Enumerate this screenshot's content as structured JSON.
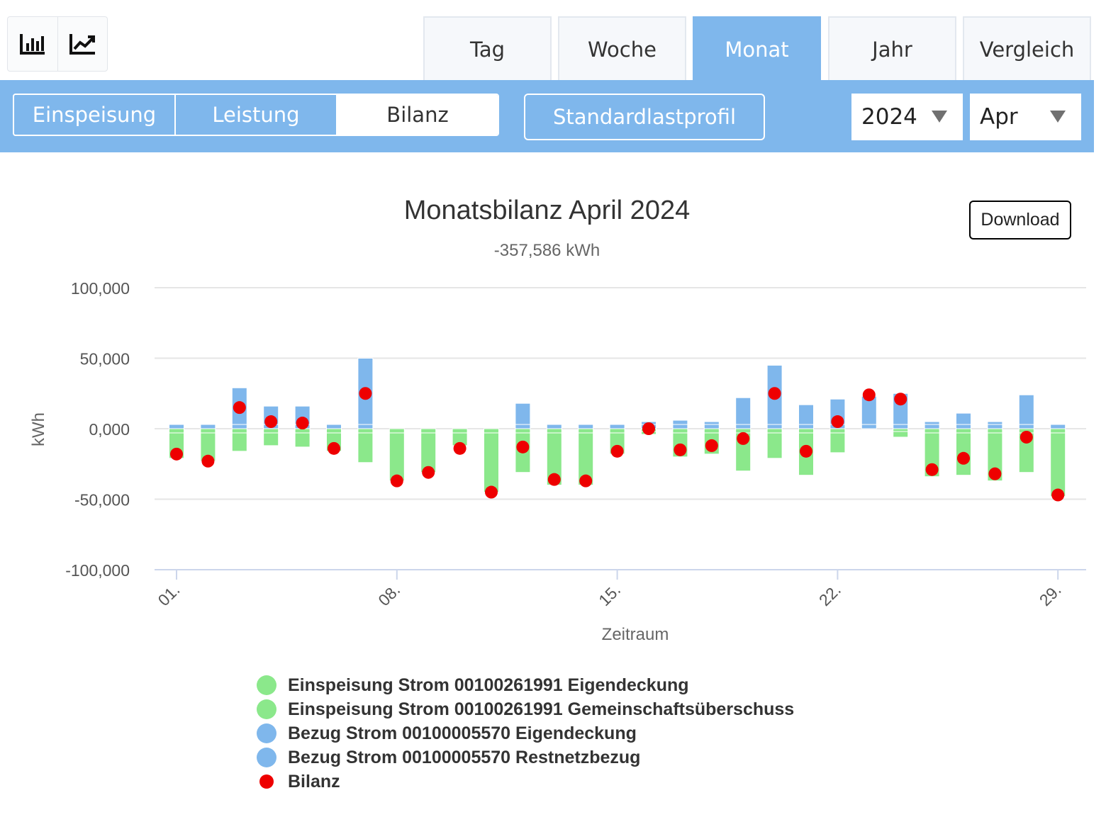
{
  "view_toggle": {
    "bar_icon": "bar-chart-icon",
    "line_icon": "line-chart-icon"
  },
  "period_tabs": [
    {
      "label": "Tag",
      "active": false
    },
    {
      "label": "Woche",
      "active": false
    },
    {
      "label": "Monat",
      "active": true
    },
    {
      "label": "Jahr",
      "active": false
    },
    {
      "label": "Vergleich",
      "active": false
    }
  ],
  "mode_tabs": [
    {
      "label": "Einspeisung",
      "active": false
    },
    {
      "label": "Leistung",
      "active": false
    },
    {
      "label": "Bilanz",
      "active": true
    }
  ],
  "standard_profile_label": "Standardlastprofil",
  "year_select": {
    "value": "2024"
  },
  "month_select": {
    "value": "Apr"
  },
  "download_label": "Download",
  "colors": {
    "accent": "#7fb7ec",
    "feed_in": "#8be88b",
    "consumption": "#7fb7ec",
    "balance": "#ee0000"
  },
  "chart_data": {
    "type": "bar",
    "title": "Monatsbilanz April 2024",
    "subtitle": "-357,586 kWh",
    "xlabel": "Zeitraum",
    "ylabel": "kWh",
    "ylim": [
      -100,
      100
    ],
    "yticks": [
      "100,000",
      "50,000",
      "0,000",
      "-50,000",
      "-100,000"
    ],
    "ytick_values": [
      100,
      50,
      0,
      -50,
      -100
    ],
    "x": [
      1,
      2,
      3,
      4,
      5,
      6,
      7,
      8,
      9,
      10,
      11,
      12,
      13,
      14,
      15,
      16,
      17,
      18,
      19,
      20,
      21,
      22,
      23,
      24,
      25,
      26,
      27,
      28,
      29
    ],
    "x_tick_labels": [
      {
        "day": 1,
        "label": "01."
      },
      {
        "day": 8,
        "label": "08."
      },
      {
        "day": 15,
        "label": "15."
      },
      {
        "day": 22,
        "label": "22."
      },
      {
        "day": 29,
        "label": "29."
      }
    ],
    "series": [
      {
        "name": "Einspeisung Strom 00100261991 Eigendeckung",
        "values": [
          -3,
          -3,
          -3,
          -3,
          -3,
          -3,
          -3,
          -3,
          -3,
          -3,
          -3,
          -3,
          -3,
          -3,
          -3,
          -2,
          -3,
          -3,
          -3,
          -3,
          -3,
          -3,
          0,
          -2,
          -3,
          -3,
          -3,
          -3,
          -3
        ]
      },
      {
        "name": "Einspeisung Strom 00100261991 Gemeinschaftsüberschuss",
        "values": [
          -18,
          -20,
          -13,
          -9,
          -10,
          -13,
          -21,
          -34,
          -28,
          -9,
          -42,
          -28,
          -37,
          -37,
          -15,
          -2,
          -17,
          -15,
          -27,
          -18,
          -30,
          -14,
          0,
          -4,
          -31,
          -30,
          -34,
          -28,
          -45
        ]
      },
      {
        "name": "Bezug Strom 00100005570 Eigendeckung",
        "values": [
          3,
          3,
          3,
          3,
          3,
          3,
          3,
          0,
          0,
          0,
          0,
          3,
          3,
          3,
          3,
          3,
          3,
          3,
          3,
          3,
          3,
          3,
          3,
          3,
          3,
          3,
          3,
          3,
          3
        ]
      },
      {
        "name": "Bezug Strom 00100005570 Restnetzbezug",
        "values": [
          0,
          0,
          26,
          13,
          13,
          0,
          47,
          0,
          0,
          0,
          0,
          15,
          0,
          0,
          0,
          2,
          3,
          2,
          19,
          42,
          14,
          18,
          20,
          22,
          2,
          8,
          2,
          21,
          0
        ]
      },
      {
        "name": "Bilanz",
        "values": [
          -18,
          -23,
          15,
          5,
          4,
          -14,
          25,
          -37,
          -31,
          -14,
          -45,
          -13,
          -36,
          -37,
          -16,
          0,
          -15,
          -12,
          -7,
          25,
          -16,
          5,
          24,
          21,
          -29,
          -21,
          -32,
          -6,
          -47
        ]
      }
    ],
    "legend_position": "bottom"
  }
}
